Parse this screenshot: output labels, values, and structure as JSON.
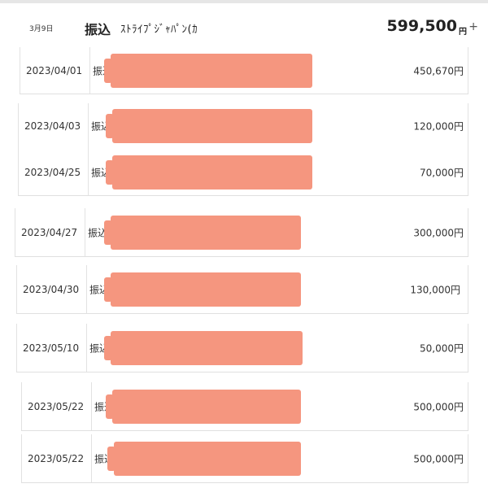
{
  "header": {
    "date": "3月9日",
    "type": "振込",
    "payee": "ｽﾄﾗｲﾌﾟｼﾞｬﾊﾟﾝ(ｶ",
    "amount": "599,500",
    "currency": "円",
    "expand": "+"
  },
  "transactions": [
    {
      "date": "2023/04/01",
      "type": "振込",
      "amount": "450,670",
      "currency": "円"
    },
    {
      "date": "2023/04/03",
      "type": "振込",
      "amount": "120,000",
      "currency": "円"
    },
    {
      "date": "2023/04/25",
      "type": "振込",
      "amount": "70,000",
      "currency": "円"
    },
    {
      "date": "2023/04/27",
      "type": "振込",
      "amount": "300,000",
      "currency": "円"
    },
    {
      "date": "2023/04/30",
      "type": "振込",
      "amount": "130,000",
      "currency": "円"
    },
    {
      "date": "2023/05/10",
      "type": "振込",
      "amount": "50,000",
      "currency": "円"
    },
    {
      "date": "2023/05/22",
      "type": "振込",
      "amount": "500,000",
      "currency": "円"
    },
    {
      "date": "2023/05/22",
      "type": "振込",
      "amount": "500,000",
      "currency": "円"
    }
  ],
  "colors": {
    "redaction": "#f5967f"
  }
}
